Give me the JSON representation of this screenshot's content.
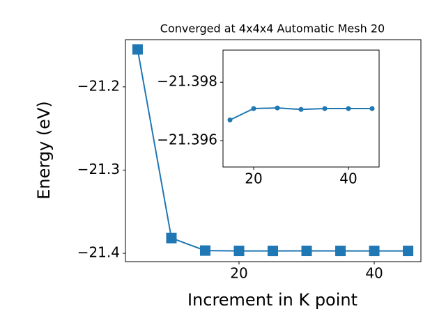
{
  "chart_data": [
    {
      "type": "line",
      "title": "Converged at 4x4x4 Automatic Mesh 20",
      "x_label": "Increment in K point",
      "y_label": "Energy (eV)",
      "x": [
        5,
        10,
        15,
        20,
        25,
        30,
        35,
        40,
        45
      ],
      "values": [
        -21.155,
        -21.3817,
        -21.39671,
        -21.3971,
        -21.39712,
        -21.39707,
        -21.3971,
        -21.3971,
        -21.3971
      ],
      "color": "#1f77b4",
      "marker": "square",
      "xlim": [
        3.2,
        46.9
      ],
      "ylim": [
        -21.41,
        -21.1433
      ],
      "xticks": [
        20,
        40
      ],
      "yticks": [
        {
          "value": -21.4,
          "label": "−21.4"
        },
        {
          "value": -21.3,
          "label": "−21.3"
        },
        {
          "value": -21.2,
          "label": "−21.2"
        }
      ]
    },
    {
      "type": "line",
      "x": [
        15,
        20,
        25,
        30,
        35,
        40,
        45
      ],
      "values": [
        -21.39671,
        -21.3971,
        -21.39712,
        -21.39707,
        -21.3971,
        -21.3971,
        -21.3971
      ],
      "color": "#1f77b4",
      "marker": "circle",
      "xlim": [
        13.53,
        46.47
      ],
      "ylim": [
        -21.3951,
        -21.3991
      ],
      "xticks": [
        20,
        40
      ],
      "yticks": [
        {
          "value": -21.398,
          "label": "−21.398"
        },
        {
          "value": -21.396,
          "label": "−21.396"
        }
      ]
    }
  ]
}
